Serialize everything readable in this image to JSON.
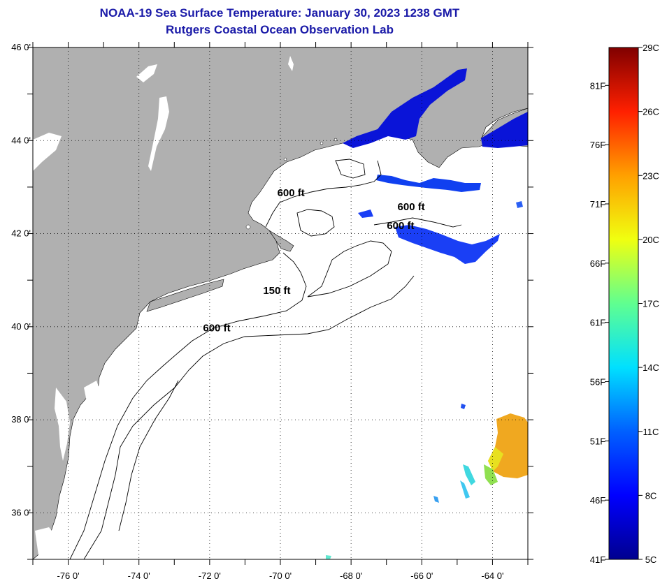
{
  "title": {
    "line1": "NOAA-19 Sea Surface Temperature:  January 30, 2023 1238 GMT",
    "line2": "Rutgers Coastal Ocean Observation Lab"
  },
  "map": {
    "lon_range": [
      -77,
      -63
    ],
    "lat_range": [
      35,
      46
    ],
    "lon_ticks": [
      {
        "value": -76,
        "label": "-76 0'"
      },
      {
        "value": -74,
        "label": "-74 0'"
      },
      {
        "value": -72,
        "label": "-72 0'"
      },
      {
        "value": -70,
        "label": "-70 0'"
      },
      {
        "value": -68,
        "label": "-68 0'"
      },
      {
        "value": -66,
        "label": "-66 0'"
      },
      {
        "value": -64,
        "label": "-64 0'"
      }
    ],
    "lat_ticks": [
      {
        "value": 46,
        "label": "46 0'"
      },
      {
        "value": 44,
        "label": "44 0'"
      },
      {
        "value": 42,
        "label": "42 0'"
      },
      {
        "value": 40,
        "label": "40 0'"
      },
      {
        "value": 38,
        "label": "38 0'"
      },
      {
        "value": 36,
        "label": "36 0'"
      }
    ],
    "contour_labels": [
      {
        "text": "600 ft",
        "lon": -69.7,
        "lat": 42.8
      },
      {
        "text": "600 ft",
        "lon": -66.3,
        "lat": 42.5
      },
      {
        "text": "600 ft",
        "lon": -66.6,
        "lat": 42.1
      },
      {
        "text": "150 ft",
        "lon": -70.1,
        "lat": 40.7
      },
      {
        "text": "600 ft",
        "lon": -71.8,
        "lat": 39.9
      }
    ],
    "land_color": "#b0b0b0",
    "ocean_color": "#ffffff"
  },
  "colorbar": {
    "colors": [
      "#00008f",
      "#0000ff",
      "#0080ff",
      "#00ffff",
      "#80ff80",
      "#ffff00",
      "#ff8000",
      "#ff0000",
      "#800000"
    ],
    "fahrenheit_labels": [
      {
        "value": 41,
        "label": "41F"
      },
      {
        "value": 46,
        "label": "46F"
      },
      {
        "value": 51,
        "label": "51F"
      },
      {
        "value": 56,
        "label": "56F"
      },
      {
        "value": 61,
        "label": "61F"
      },
      {
        "value": 66,
        "label": "66F"
      },
      {
        "value": 71,
        "label": "71F"
      },
      {
        "value": 76,
        "label": "76F"
      },
      {
        "value": 81,
        "label": "81F"
      }
    ],
    "celsius_labels": [
      {
        "value": 5,
        "label": "5C"
      },
      {
        "value": 8,
        "label": "8C"
      },
      {
        "value": 11,
        "label": "11C"
      },
      {
        "value": 14,
        "label": "14C"
      },
      {
        "value": 17,
        "label": "17C"
      },
      {
        "value": 20,
        "label": "20C"
      },
      {
        "value": 23,
        "label": "23C"
      },
      {
        "value": 26,
        "label": "26C"
      },
      {
        "value": 29,
        "label": "29C"
      }
    ]
  }
}
